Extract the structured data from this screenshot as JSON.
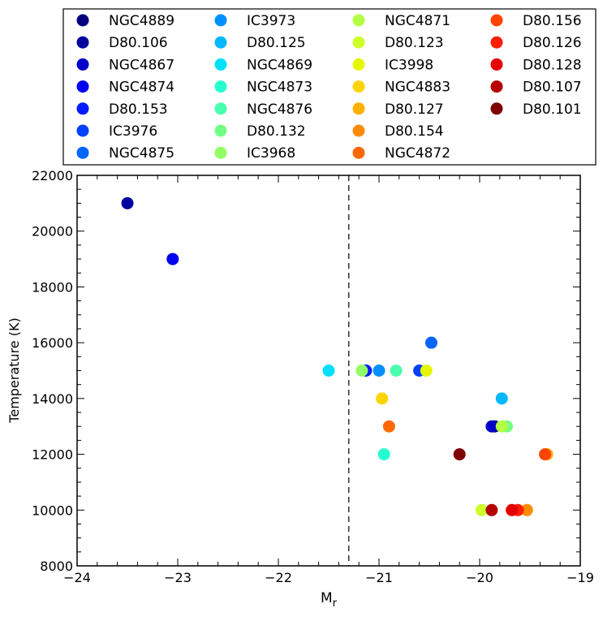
{
  "chart_data": {
    "type": "scatter",
    "title": "",
    "xlabel": "M",
    "xlabel_sub": "r",
    "ylabel": "Temperature (K)",
    "xlim": [
      -24,
      -19
    ],
    "ylim": [
      8000,
      22000
    ],
    "xticks": [
      -24,
      -23,
      -22,
      -21,
      -20,
      -19
    ],
    "yticks": [
      8000,
      10000,
      12000,
      14000,
      16000,
      18000,
      20000,
      22000
    ],
    "grid": false,
    "reference_line": {
      "x": -21.3,
      "style": "dashed"
    },
    "legend_position": "top",
    "series": [
      {
        "name": "NGC4889",
        "color": "#00007f",
        "x": -19.85,
        "y": 13000
      },
      {
        "name": "D80.106",
        "color": "#00009f",
        "x": -23.5,
        "y": 21000
      },
      {
        "name": "NGC4867",
        "color": "#0000c8",
        "x": -19.88,
        "y": 13000
      },
      {
        "name": "NGC4874",
        "color": "#0000f1",
        "x": -23.05,
        "y": 19000
      },
      {
        "name": "D80.153",
        "color": "#001cff",
        "x": -21.13,
        "y": 15000
      },
      {
        "name": "IC3976",
        "color": "#0040ff",
        "x": -20.6,
        "y": 15000
      },
      {
        "name": "NGC4875",
        "color": "#0064ff",
        "x": -20.48,
        "y": 16000
      },
      {
        "name": "IC3973",
        "color": "#0090ff",
        "x": -21.0,
        "y": 15000
      },
      {
        "name": "D80.125",
        "color": "#00b8ff",
        "x": -19.78,
        "y": 14000
      },
      {
        "name": "NGC4869",
        "color": "#00e0fb",
        "x": -21.5,
        "y": 15000
      },
      {
        "name": "NGC4873",
        "color": "#26ffd0",
        "x": -20.95,
        "y": 12000
      },
      {
        "name": "NGC4876",
        "color": "#4affad",
        "x": -20.83,
        "y": 15000
      },
      {
        "name": "D80.132",
        "color": "#73ff83",
        "x": -19.73,
        "y": 13000
      },
      {
        "name": "IC3968",
        "color": "#93ff64",
        "x": -21.17,
        "y": 15000
      },
      {
        "name": "NGC4871",
        "color": "#b3ff43",
        "x": -19.78,
        "y": 13000
      },
      {
        "name": "D80.123",
        "color": "#cdff2a",
        "x": -19.98,
        "y": 10000
      },
      {
        "name": "IC3998",
        "color": "#e5f700",
        "x": -20.53,
        "y": 15000
      },
      {
        "name": "NGC4883",
        "color": "#fed400",
        "x": -20.97,
        "y": 14000
      },
      {
        "name": "D80.127",
        "color": "#ffb000",
        "x": -19.33,
        "y": 12000
      },
      {
        "name": "D80.154",
        "color": "#ff8c00",
        "x": -19.53,
        "y": 10000
      },
      {
        "name": "NGC4872",
        "color": "#ff6800",
        "x": -20.9,
        "y": 13000
      },
      {
        "name": "D80.156",
        "color": "#ff4400",
        "x": -19.35,
        "y": 12000
      },
      {
        "name": "D80.126",
        "color": "#ff1e00",
        "x": -19.62,
        "y": 10000
      },
      {
        "name": "D80.128",
        "color": "#e40000",
        "x": -19.68,
        "y": 10000
      },
      {
        "name": "D80.107",
        "color": "#b40000",
        "x": -19.88,
        "y": 10000
      },
      {
        "name": "D80.101",
        "color": "#7f0000",
        "x": -20.2,
        "y": 12000
      }
    ]
  }
}
